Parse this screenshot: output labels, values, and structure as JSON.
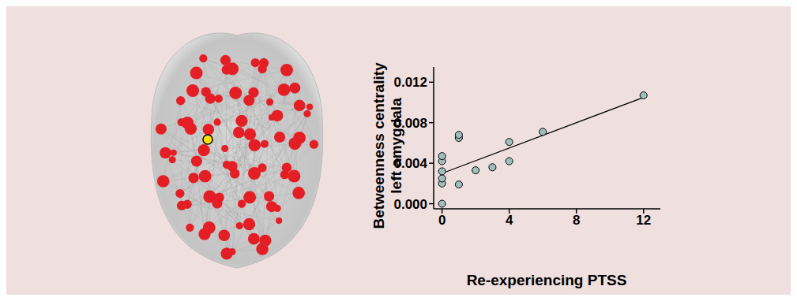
{
  "chart_data": {
    "type": "scatter",
    "x_label": "Re-experiencing PTSS",
    "y_label": [
      "Betweenness centrality",
      "left amygdala"
    ],
    "x": [
      0,
      0,
      0,
      0,
      0,
      0,
      1,
      1,
      1,
      2,
      3,
      4,
      4,
      6,
      12
    ],
    "values": [
      0.0,
      0.002,
      0.0025,
      0.0032,
      0.0042,
      0.0047,
      0.0019,
      0.0065,
      0.0068,
      0.0033,
      0.0036,
      0.0042,
      0.0061,
      0.0071,
      0.0107
    ],
    "fit_line": {
      "x": [
        0,
        12
      ],
      "values": [
        0.003,
        0.0105
      ]
    },
    "color": "#9fbfb8",
    "xlim": [
      -0.5,
      13
    ],
    "ylim": [
      -0.0005,
      0.0135
    ],
    "xticks": [
      0,
      4,
      8,
      12
    ],
    "yticks": [
      {
        "value": 0,
        "label": "0.000"
      },
      {
        "value": 0.004,
        "label": "0.004"
      },
      {
        "value": 0.008,
        "label": "0.008"
      },
      {
        "value": 0.012,
        "label": "0.012"
      }
    ]
  }
}
